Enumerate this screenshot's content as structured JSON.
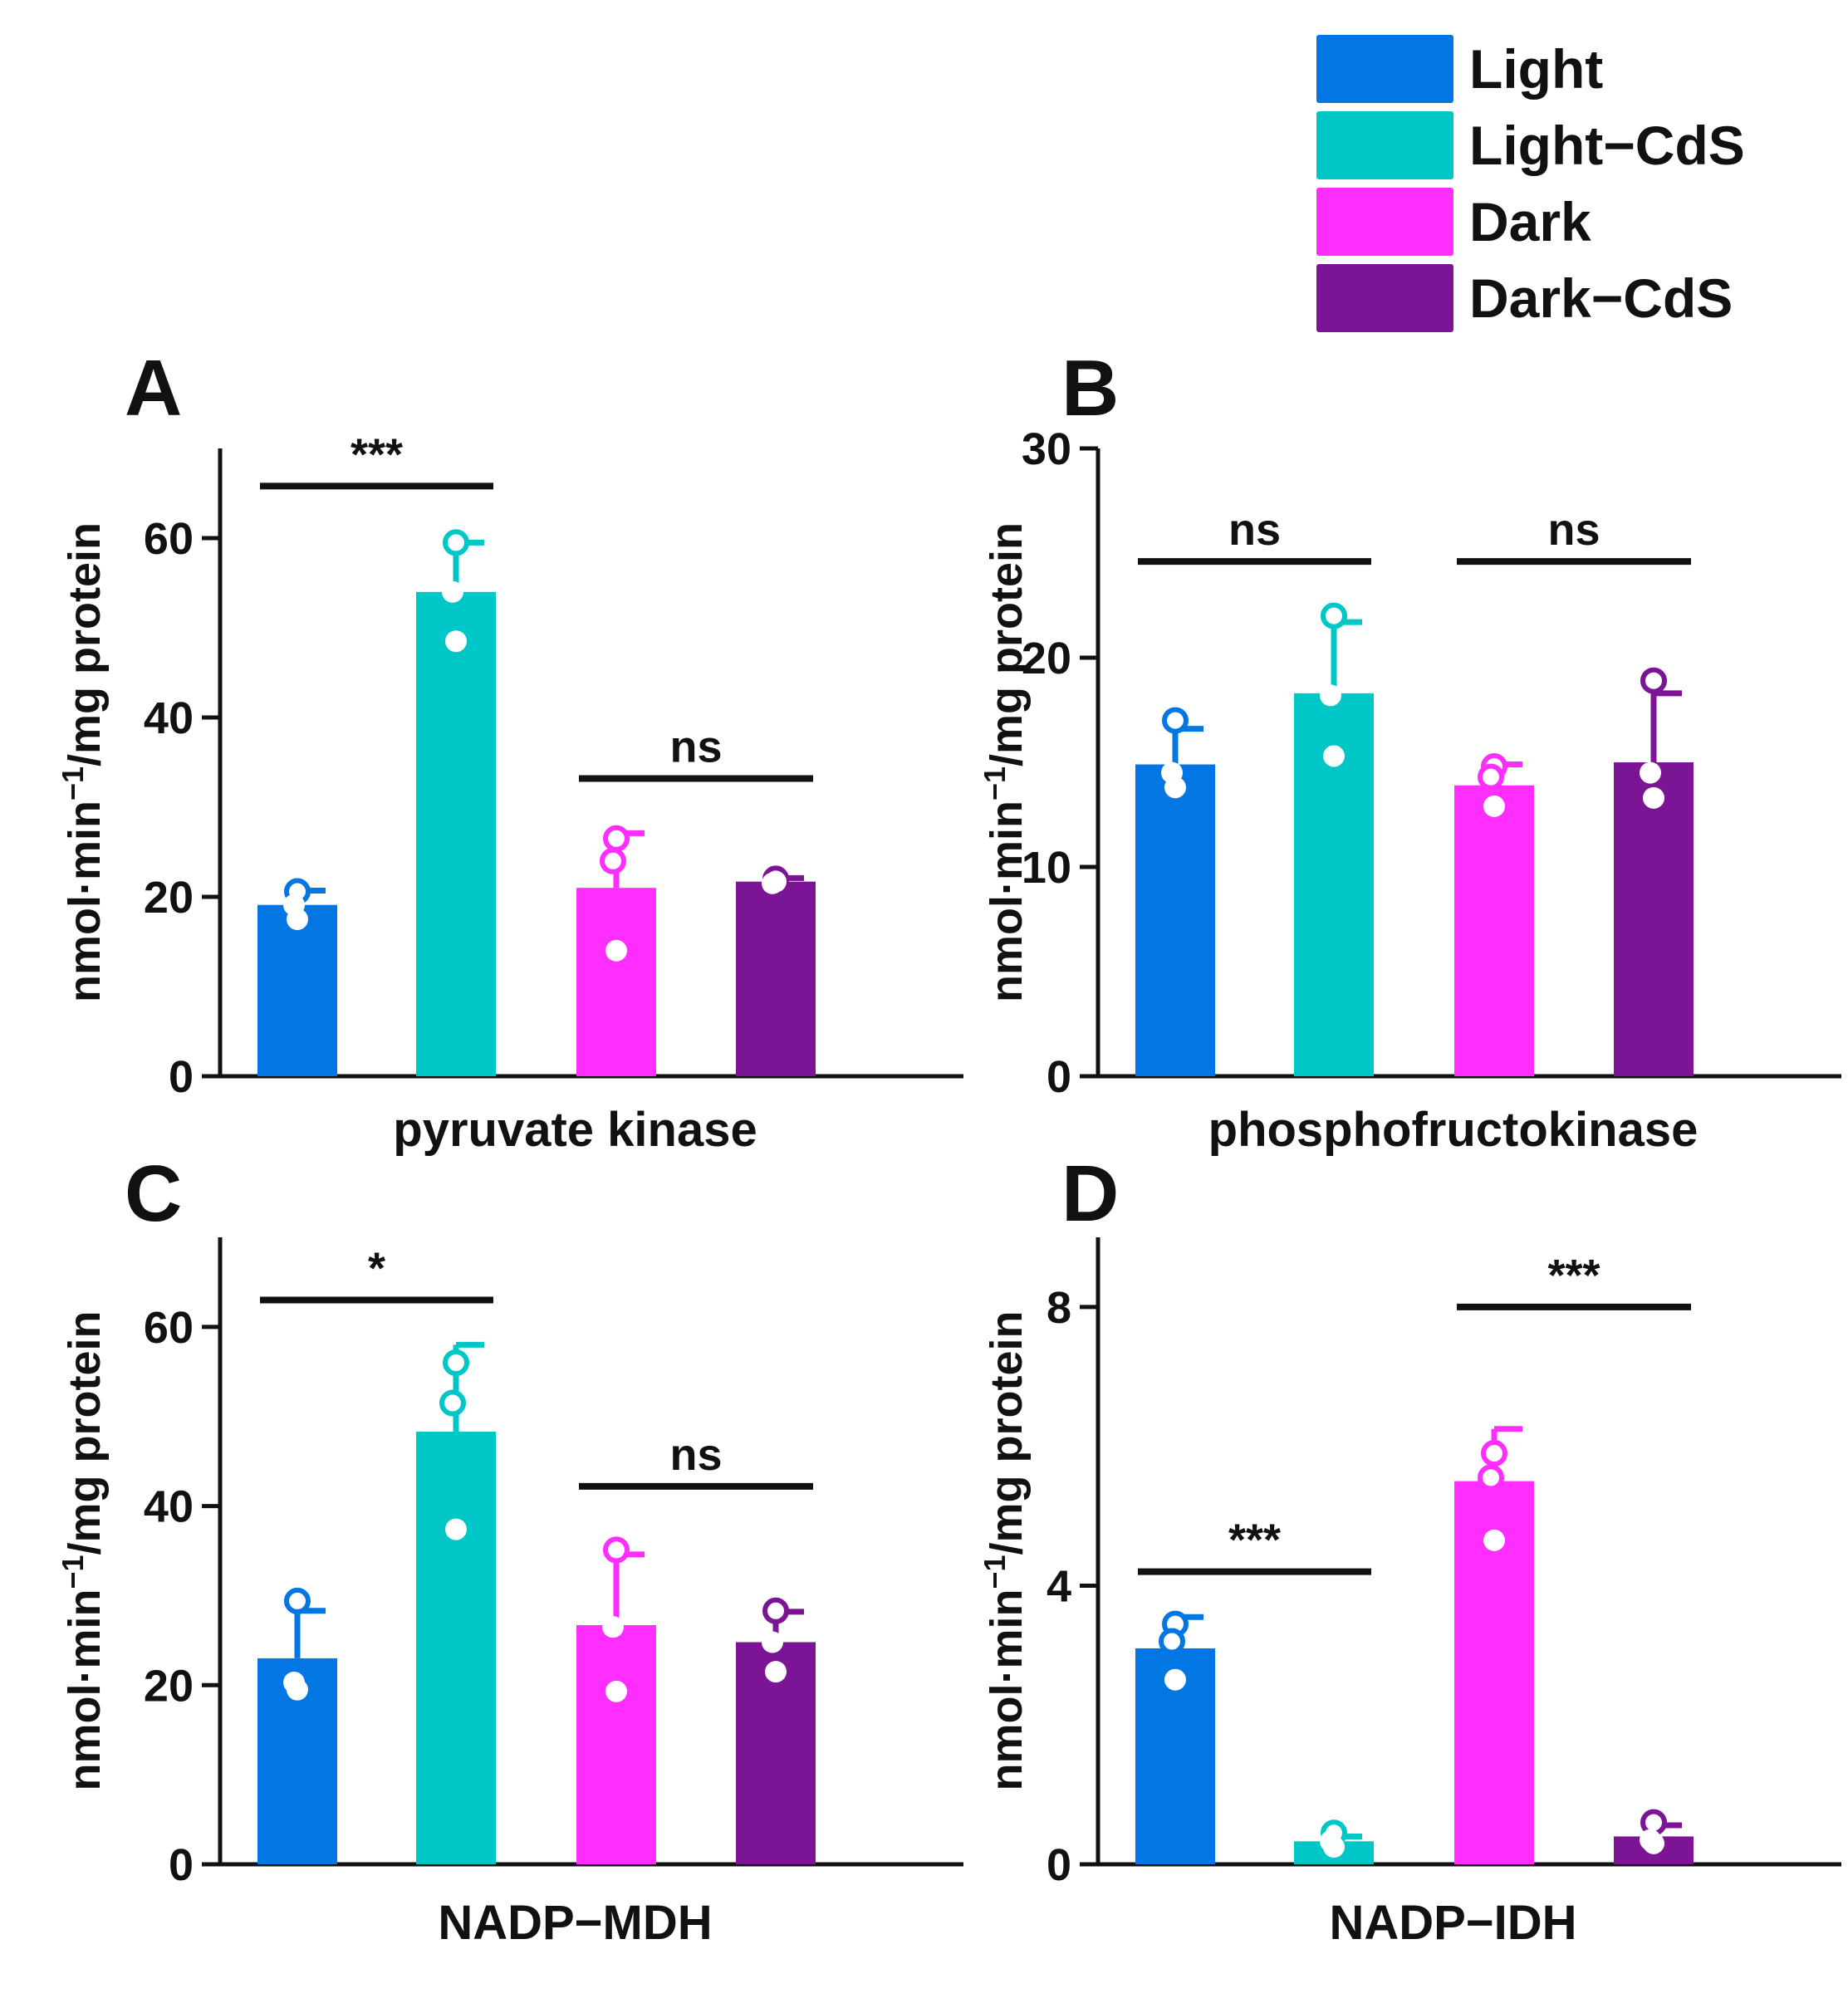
{
  "legend": [
    {
      "label": "Light",
      "color": "#0277E3"
    },
    {
      "label": "Light−CdS",
      "color": "#00C7C7"
    },
    {
      "label": "Dark",
      "color": "#FF2EFF"
    },
    {
      "label": "Dark−CdS",
      "color": "#7C1496"
    }
  ],
  "chart_data": [
    {
      "type": "bar",
      "panel": "A",
      "xlabel": "pyruvate kinase",
      "ylabel": "nmol·min⁻¹/mg protein",
      "ylim": [
        0,
        70
      ],
      "yticks": [
        0,
        20,
        40,
        60
      ],
      "categories": [
        "Light",
        "Light−CdS",
        "Dark",
        "Dark−CdS"
      ],
      "values": [
        19.1,
        54.0,
        21.0,
        21.7
      ],
      "errors": [
        1.6,
        5.5,
        6.1,
        0.4
      ],
      "points": [
        [
          20.6,
          19.1,
          17.5
        ],
        [
          59.5,
          54.0,
          48.5
        ],
        [
          26.5,
          24.0,
          14.0
        ],
        [
          22.0,
          21.5,
          21.7
        ]
      ],
      "significance": [
        {
          "groups": [
            0,
            1
          ],
          "label": "***",
          "y": 65.8
        },
        {
          "groups": [
            2,
            3
          ],
          "label": "ns",
          "y": 33.2
        }
      ]
    },
    {
      "type": "bar",
      "panel": "B",
      "xlabel": "phosphofructokinase",
      "ylabel": "nmol·min⁻¹/mg protein",
      "ylim": [
        0,
        30
      ],
      "yticks": [
        0,
        10,
        20,
        30
      ],
      "categories": [
        "Light",
        "Light−CdS",
        "Dark",
        "Dark−CdS"
      ],
      "values": [
        14.9,
        18.3,
        13.9,
        15.0
      ],
      "errors": [
        1.7,
        3.4,
        1.0,
        3.3
      ],
      "points": [
        [
          17.0,
          14.5,
          13.8
        ],
        [
          22.0,
          18.2,
          15.3
        ],
        [
          14.8,
          14.3,
          12.9
        ],
        [
          18.9,
          14.5,
          13.3
        ]
      ],
      "significance": [
        {
          "groups": [
            0,
            1
          ],
          "label": "ns",
          "y": 24.6
        },
        {
          "groups": [
            2,
            3
          ],
          "label": "ns",
          "y": 24.6
        }
      ]
    },
    {
      "type": "bar",
      "panel": "C",
      "xlabel": "NADP−MDH",
      "ylabel": "nmol·min⁻¹/mg protein",
      "ylim": [
        0,
        70
      ],
      "yticks": [
        0,
        20,
        40,
        60
      ],
      "categories": [
        "Light",
        "Light−CdS",
        "Dark",
        "Dark−CdS"
      ],
      "values": [
        23.0,
        48.3,
        26.7,
        24.8
      ],
      "errors": [
        5.3,
        9.7,
        7.9,
        3.4
      ],
      "points": [
        [
          29.4,
          20.3,
          19.5
        ],
        [
          56.0,
          51.5,
          37.4
        ],
        [
          35.1,
          26.5,
          19.3
        ],
        [
          28.3,
          24.8,
          21.5
        ]
      ],
      "significance": [
        {
          "groups": [
            0,
            1
          ],
          "label": "*",
          "y": 63.0
        },
        {
          "groups": [
            2,
            3
          ],
          "label": "ns",
          "y": 42.2
        }
      ]
    },
    {
      "type": "bar",
      "panel": "D",
      "xlabel": "NADP−IDH",
      "ylabel": "nmol·min⁻¹/mg protein",
      "ylim": [
        0,
        9
      ],
      "yticks": [
        0,
        4,
        8
      ],
      "categories": [
        "Light",
        "Light−CdS",
        "Dark",
        "Dark−CdS"
      ],
      "values": [
        3.1,
        0.33,
        5.5,
        0.4
      ],
      "errors": [
        0.45,
        0.07,
        0.75,
        0.16
      ],
      "points": [
        [
          3.45,
          3.2,
          2.65
        ],
        [
          0.45,
          0.33,
          0.25
        ],
        [
          5.9,
          5.55,
          4.65
        ],
        [
          0.6,
          0.35,
          0.3
        ]
      ],
      "significance": [
        {
          "groups": [
            0,
            1
          ],
          "label": "***",
          "y": 4.2
        },
        {
          "groups": [
            2,
            3
          ],
          "label": "***",
          "y": 8.0
        }
      ]
    }
  ]
}
